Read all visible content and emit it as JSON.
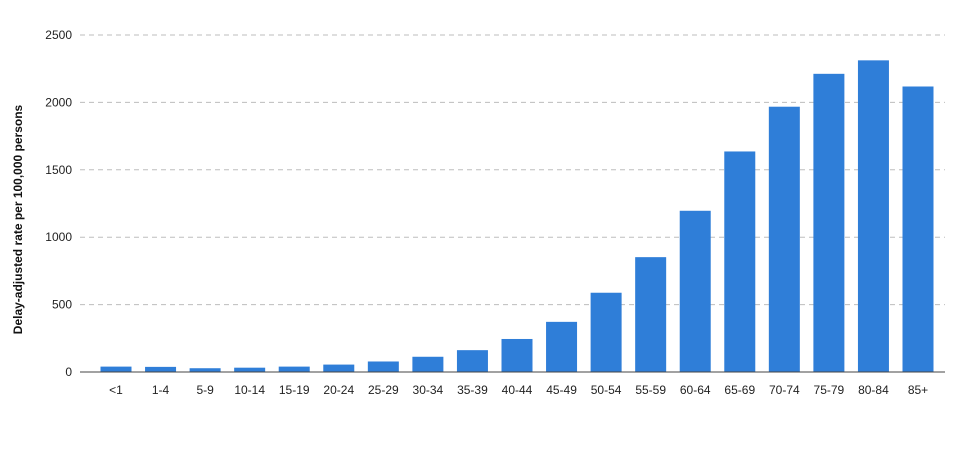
{
  "chart_data": {
    "type": "bar",
    "title": "",
    "xlabel": "",
    "ylabel": "Delay-adjusted rate per 100,000 persons",
    "ylim": [
      0,
      2500
    ],
    "yticks": [
      0,
      500,
      1000,
      1500,
      2000,
      2500
    ],
    "grid": true,
    "legend": "none",
    "bar_color": "#2f7ed8",
    "categories": [
      "<1",
      "1-4",
      "5-9",
      "10-14",
      "15-19",
      "20-24",
      "25-29",
      "30-34",
      "35-39",
      "40-44",
      "45-49",
      "50-54",
      "55-59",
      "60-64",
      "65-69",
      "70-74",
      "75-79",
      "80-84",
      "85+"
    ],
    "values": [
      40,
      38,
      28,
      32,
      40,
      55,
      78,
      113,
      162,
      245,
      372,
      588,
      852,
      1196,
      1636,
      1968,
      2212,
      2312,
      2118
    ]
  }
}
